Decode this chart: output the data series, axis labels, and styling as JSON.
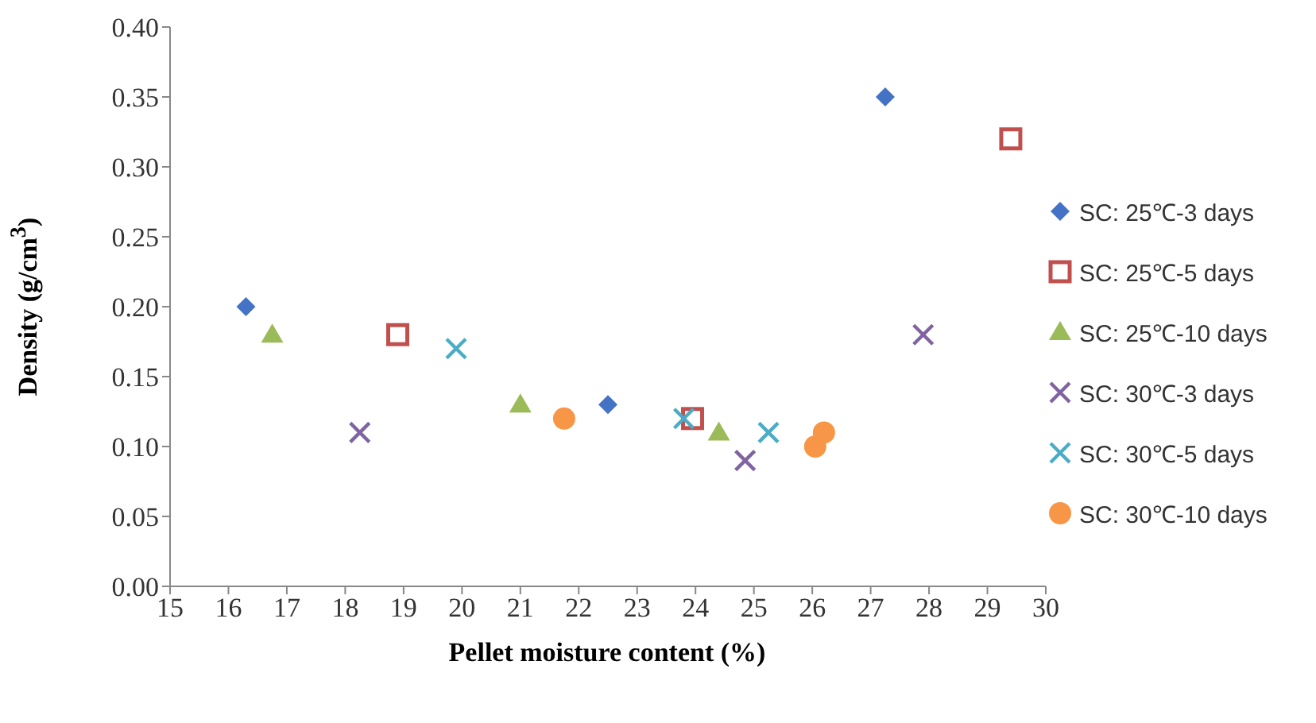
{
  "chart_data": {
    "type": "scatter",
    "xlabel": "Pellet moisture content (%)",
    "ylabel": "Density (g/cm$^{3}$)",
    "xlim": [
      15,
      30
    ],
    "xticks": [
      15,
      16,
      17,
      18,
      19,
      20,
      21,
      22,
      23,
      24,
      25,
      26,
      27,
      28,
      29,
      30
    ],
    "ylim": [
      0,
      0.4
    ],
    "yticks": [
      {
        "value": 0,
        "label": "0.00"
      },
      {
        "value": 0.05,
        "label": "0.05"
      },
      {
        "value": 0.1,
        "label": "0.10"
      },
      {
        "value": 0.15,
        "label": "0.15"
      },
      {
        "value": 0.2,
        "label": "0.20"
      },
      {
        "value": 0.25,
        "label": "0.25"
      },
      {
        "value": 0.3,
        "label": "0.30"
      },
      {
        "value": 0.35,
        "label": "0.35"
      },
      {
        "value": 0.4,
        "label": "0.40"
      }
    ],
    "grid": false,
    "legend": "right",
    "series": [
      {
        "name": "SC: 25℃-3 days",
        "color": "#4472c4",
        "marker": "diamond",
        "x": [
          16.3,
          22.5,
          27.25
        ],
        "values": [
          0.2,
          0.13,
          0.35
        ]
      },
      {
        "name": "SC: 25℃-5 days",
        "color": "#c0504d",
        "marker": "square",
        "x": [
          18.9,
          23.95,
          29.4
        ],
        "values": [
          0.18,
          0.12,
          0.32
        ]
      },
      {
        "name": "SC: 25℃-10 days",
        "color": "#9bbb59",
        "marker": "triangle",
        "x": [
          16.75,
          21.0,
          24.4
        ],
        "values": [
          0.18,
          0.13,
          0.11
        ]
      },
      {
        "name": "SC: 30℃-3 days",
        "color": "#8064a2",
        "marker": "cross",
        "x": [
          18.25,
          24.85,
          27.9
        ],
        "values": [
          0.11,
          0.09,
          0.18
        ]
      },
      {
        "name": "SC: 30℃-5 days",
        "color": "#4bacc6",
        "marker": "cross",
        "x": [
          19.9,
          23.8,
          25.25
        ],
        "values": [
          0.17,
          0.12,
          0.11
        ]
      },
      {
        "name": "SC: 30℃-10 days",
        "color": "#f79646",
        "marker": "circle",
        "x": [
          21.75,
          26.05,
          26.2
        ],
        "values": [
          0.12,
          0.1,
          0.11
        ]
      }
    ]
  }
}
